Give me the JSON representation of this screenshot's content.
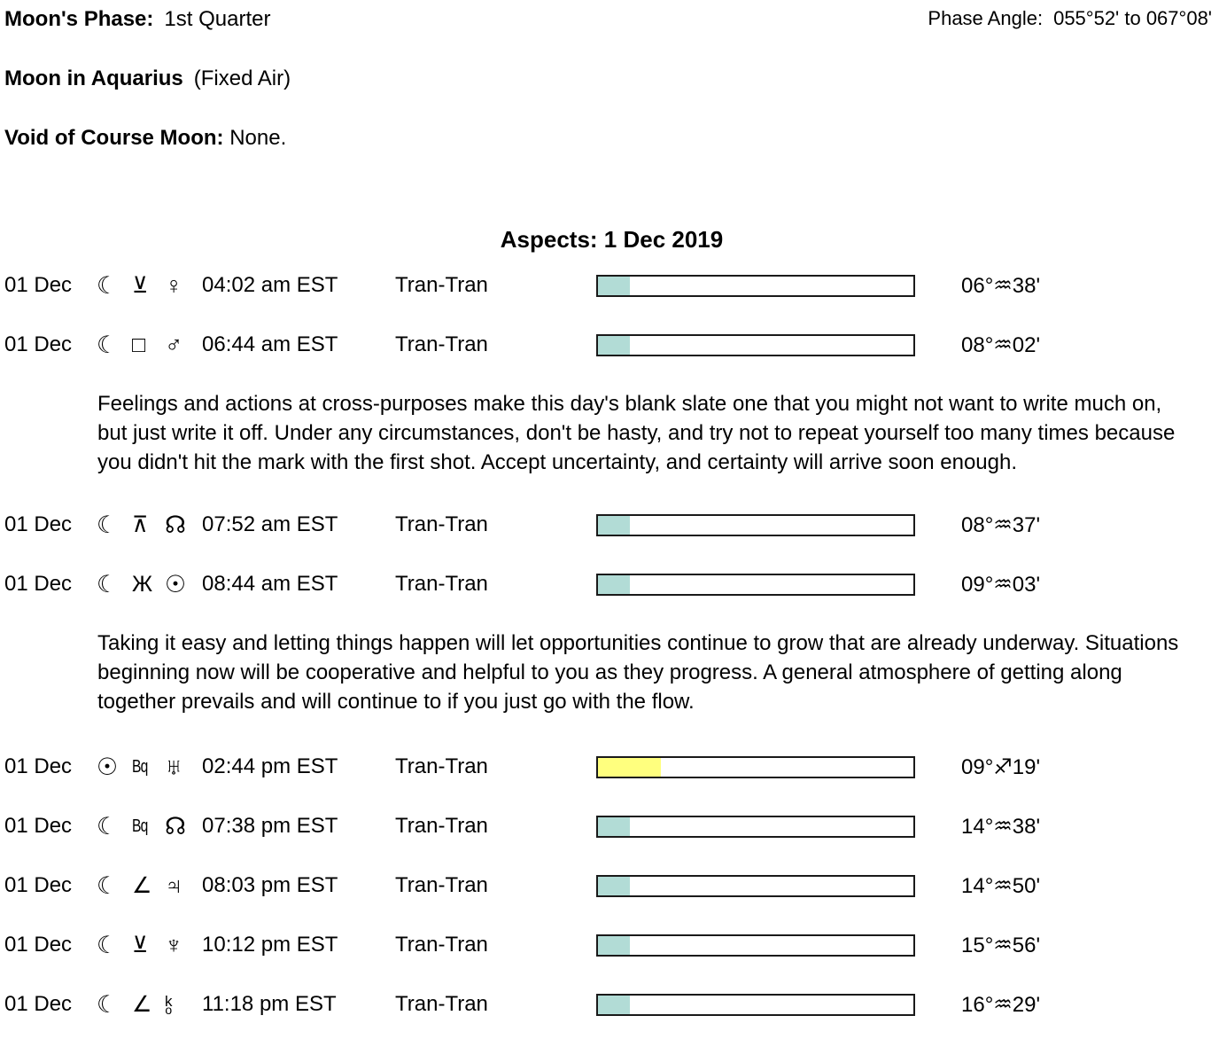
{
  "header": {
    "moons_phase_label": "Moon's Phase:",
    "moons_phase_value": "1st Quarter",
    "phase_angle_label": "Phase Angle:",
    "phase_angle_value": "055°52' to 067°08'",
    "moon_sign_label": "Moon in Aquarius",
    "moon_sign_note": "(Fixed Air)",
    "voc_label": "Void of Course Moon:",
    "voc_value": "None."
  },
  "glyph_legend": {
    "moon-icon": "☾",
    "sun-icon": "☉",
    "venus-icon": "♀",
    "mars-icon": "♂",
    "jupiter-icon": "♃",
    "uranus-icon": "♅",
    "neptune-icon": "♆",
    "north-node-icon": "☊",
    "chiron-icon": "k/o",
    "semi-sextile-icon": "⊻",
    "square-icon": "□",
    "quincunx-icon": "⊼",
    "sextile-icon": "Ж",
    "semi-square-icon": "∠",
    "biquintile-label": "Bq"
  },
  "aspects": {
    "title": "Aspects: 1 Dec 2019",
    "rows": [
      {
        "date": "01 Dec",
        "body1_glyph": "☾",
        "aspect_glyph": "⊻",
        "body2_glyph": "♀",
        "time": "04:02 am EST",
        "type": "Tran-Tran",
        "bar": {
          "fill_pct": 10,
          "fill_color": "#b2dcd6"
        },
        "position": "06°♒38'"
      },
      {
        "date": "01 Dec",
        "body1_glyph": "☾",
        "aspect_glyph": "□",
        "body2_glyph": "♂",
        "time": "06:44 am EST",
        "type": "Tran-Tran",
        "bar": {
          "fill_pct": 10,
          "fill_color": "#b2dcd6"
        },
        "position": "08°♒02'",
        "description": "Feelings and actions at cross-purposes make this day's blank slate one that you might not want to write much on, but just write it off. Under any circumstances, don't be hasty, and try not to repeat yourself too many times because you didn't hit the mark with the first shot. Accept uncertainty, and certainty will arrive soon enough."
      },
      {
        "date": "01 Dec",
        "body1_glyph": "☾",
        "aspect_glyph": "⊼",
        "body2_glyph": "☊",
        "time": "07:52 am EST",
        "type": "Tran-Tran",
        "bar": {
          "fill_pct": 10,
          "fill_color": "#b2dcd6"
        },
        "position": "08°♒37'"
      },
      {
        "date": "01 Dec",
        "body1_glyph": "☾",
        "aspect_glyph": "Ж",
        "body2_glyph": "☉",
        "time": "08:44 am EST",
        "type": "Tran-Tran",
        "bar": {
          "fill_pct": 10,
          "fill_color": "#b2dcd6"
        },
        "position": "09°♒03'",
        "description": "Taking it easy and letting things happen will let opportunities continue to grow that are already underway. Situations beginning now will be cooperative and helpful to you as they progress. A general atmosphere of getting along together prevails and will continue to if you just go with the flow."
      },
      {
        "date": "01 Dec",
        "body1_glyph": "☉",
        "aspect_glyph": "Bq",
        "body2_glyph": "♅",
        "time": "02:44 pm EST",
        "type": "Tran-Tran",
        "bar": {
          "fill_pct": 20,
          "fill_color": "#ffff7e"
        },
        "position": "09°♐19'"
      },
      {
        "date": "01 Dec",
        "body1_glyph": "☾",
        "aspect_glyph": "Bq",
        "body2_glyph": "☊",
        "time": "07:38 pm EST",
        "type": "Tran-Tran",
        "bar": {
          "fill_pct": 10,
          "fill_color": "#b2dcd6"
        },
        "position": "14°♒38'"
      },
      {
        "date": "01 Dec",
        "body1_glyph": "☾",
        "aspect_glyph": "∠",
        "body2_glyph": "♃",
        "time": "08:03 pm EST",
        "type": "Tran-Tran",
        "bar": {
          "fill_pct": 10,
          "fill_color": "#b2dcd6"
        },
        "position": "14°♒50'"
      },
      {
        "date": "01 Dec",
        "body1_glyph": "☾",
        "aspect_glyph": "⊻",
        "body2_glyph": "♆",
        "time": "10:12 pm EST",
        "type": "Tran-Tran",
        "bar": {
          "fill_pct": 10,
          "fill_color": "#b2dcd6"
        },
        "position": "15°♒56'"
      },
      {
        "date": "01 Dec",
        "body1_glyph": "☾",
        "aspect_glyph": "∠",
        "body2_glyph_top": "k",
        "body2_glyph_bottom": "o",
        "time": "11:18 pm EST",
        "type": "Tran-Tran",
        "bar": {
          "fill_pct": 10,
          "fill_color": "#b2dcd6"
        },
        "position": "16°♒29'"
      }
    ]
  }
}
